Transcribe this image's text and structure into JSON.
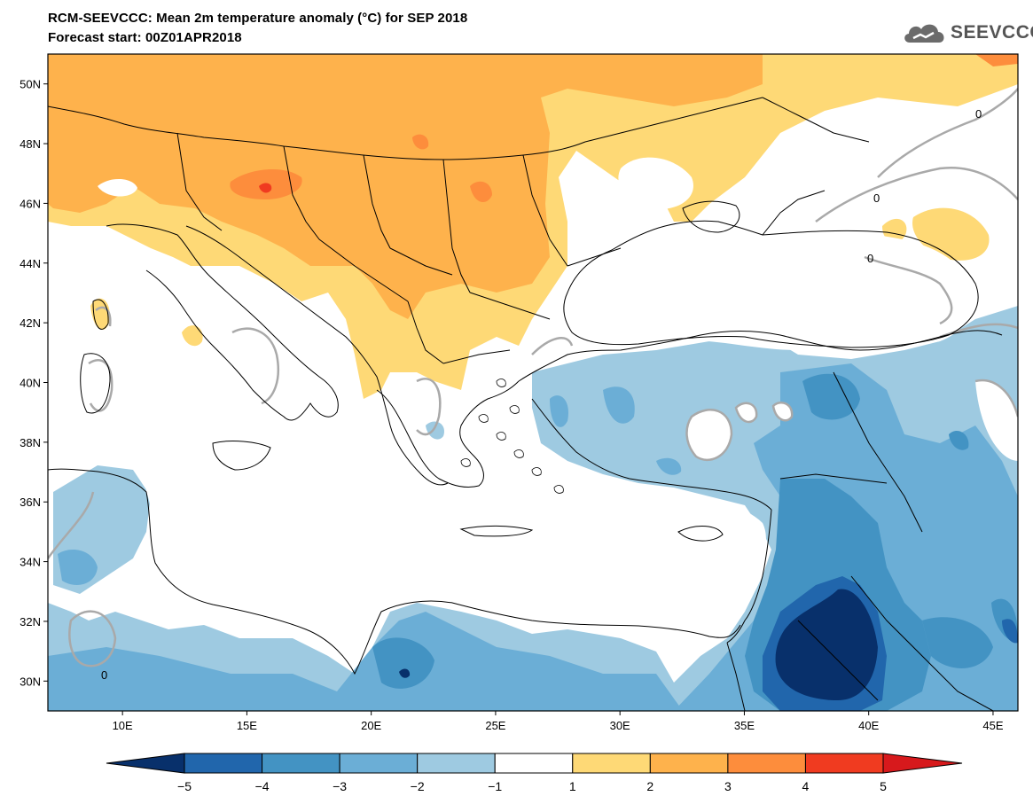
{
  "title": {
    "line1": "RCM-SEEVCCC: Mean 2m temperature anomaly (°C) for SEP 2018",
    "line2": "Forecast start: 00Z01APR2018"
  },
  "logo": {
    "text": "SEEVCCC",
    "icon": "cloud-icon"
  },
  "map": {
    "lon_range": [
      7,
      46
    ],
    "lat_range": [
      29,
      51
    ],
    "lat_ticks": [
      {
        "value": 30,
        "label": "30N"
      },
      {
        "value": 32,
        "label": "32N"
      },
      {
        "value": 34,
        "label": "34N"
      },
      {
        "value": 36,
        "label": "36N"
      },
      {
        "value": 38,
        "label": "38N"
      },
      {
        "value": 40,
        "label": "40N"
      },
      {
        "value": 42,
        "label": "42N"
      },
      {
        "value": 44,
        "label": "44N"
      },
      {
        "value": 46,
        "label": "46N"
      },
      {
        "value": 48,
        "label": "48N"
      },
      {
        "value": 50,
        "label": "50N"
      }
    ],
    "lon_ticks": [
      {
        "value": 10,
        "label": "10E"
      },
      {
        "value": 15,
        "label": "15E"
      },
      {
        "value": 20,
        "label": "20E"
      },
      {
        "value": 25,
        "label": "25E"
      },
      {
        "value": 30,
        "label": "30E"
      },
      {
        "value": 35,
        "label": "35E"
      },
      {
        "value": 40,
        "label": "40E"
      },
      {
        "value": 45,
        "label": "45E"
      }
    ],
    "contour_zero_label": "0"
  },
  "colorbar": {
    "labels": [
      "−5",
      "−4",
      "−3",
      "−2",
      "−1",
      "1",
      "2",
      "3",
      "4",
      "5"
    ],
    "low_extend_color": "#08306b",
    "high_extend_color": "#d7191c",
    "bin_colors": [
      "#2166ac",
      "#4393c3",
      "#6baed6",
      "#9ecae1",
      "#ffffff",
      "#fed976",
      "#feb24c",
      "#fd8d3c",
      "#f03b20"
    ]
  },
  "colors": {
    "warm1": "#fed976",
    "warm2": "#feb24c",
    "warm3": "#fd8d3c",
    "warm4": "#f03b20",
    "cold1": "#9ecae1",
    "cold2": "#6baed6",
    "cold3": "#4393c3",
    "cold4": "#2166ac",
    "cold5": "#08306b",
    "contour": "#a9a9a9",
    "border": "#000000"
  }
}
